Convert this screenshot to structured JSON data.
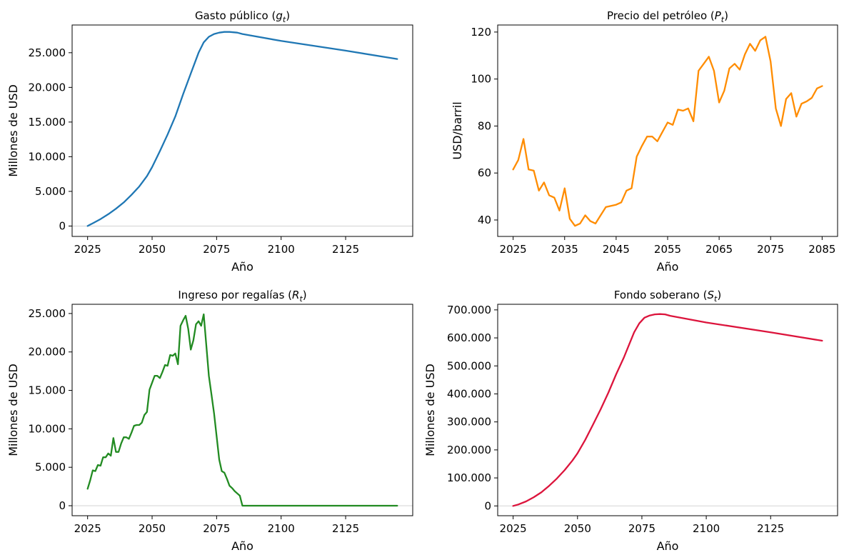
{
  "chart_data": [
    {
      "type": "line",
      "title": "Gasto público (",
      "title_var": "g",
      "title_sub": "t",
      "title_close": ")",
      "xlabel": "Año",
      "ylabel": "Millones de USD",
      "xlim": [
        2019,
        2151
      ],
      "ylim": [
        -1500,
        29000
      ],
      "xticks": [
        2025,
        2050,
        2075,
        2100,
        2125
      ],
      "xtick_labels": [
        "2025",
        "2050",
        "2075",
        "2100",
        "2125"
      ],
      "yticks": [
        0,
        5000,
        10000,
        15000,
        20000,
        25000
      ],
      "ytick_labels": [
        "0",
        "5.000",
        "10.000",
        "15.000",
        "20.000",
        "25.000"
      ],
      "zero_line": true,
      "grid": false,
      "color": "#1f77b4",
      "series": [
        {
          "x": [
            2025,
            2027,
            2030,
            2033,
            2036,
            2039,
            2042,
            2045,
            2048,
            2050,
            2053,
            2056,
            2059,
            2062,
            2065,
            2068,
            2070,
            2072,
            2074,
            2076,
            2078,
            2080,
            2083,
            2085,
            2100,
            2125,
            2145
          ],
          "values": [
            0,
            400,
            1000,
            1700,
            2500,
            3400,
            4500,
            5700,
            7200,
            8500,
            10800,
            13200,
            15800,
            19000,
            22000,
            25000,
            26500,
            27300,
            27700,
            27900,
            28000,
            28000,
            27900,
            27700,
            26700,
            25300,
            24100
          ]
        }
      ]
    },
    {
      "type": "line",
      "title": "Precio del petróleo (",
      "title_var": "P",
      "title_sub": "t",
      "title_close": ")",
      "xlabel": "Año",
      "ylabel": "USD/barril",
      "xlim": [
        2022,
        2088
      ],
      "ylim": [
        33,
        123
      ],
      "xticks": [
        2025,
        2035,
        2045,
        2055,
        2065,
        2075,
        2085
      ],
      "xtick_labels": [
        "2025",
        "2035",
        "2045",
        "2055",
        "2065",
        "2075",
        "2085"
      ],
      "yticks": [
        40,
        60,
        80,
        100,
        120
      ],
      "ytick_labels": [
        "40",
        "60",
        "80",
        "100",
        "120"
      ],
      "zero_line": false,
      "grid": false,
      "color": "#ff8c00",
      "series": [
        {
          "x": [
            2025,
            2026,
            2027,
            2028,
            2029,
            2030,
            2031,
            2032,
            2033,
            2034,
            2035,
            2036,
            2037,
            2038,
            2039,
            2040,
            2041,
            2042,
            2043,
            2044,
            2045,
            2046,
            2047,
            2048,
            2049,
            2050,
            2051,
            2052,
            2053,
            2054,
            2055,
            2056,
            2057,
            2058,
            2059,
            2060,
            2061,
            2062,
            2063,
            2064,
            2065,
            2066,
            2067,
            2068,
            2069,
            2070,
            2071,
            2072,
            2073,
            2074,
            2075,
            2076,
            2077,
            2078,
            2079,
            2080,
            2081,
            2082,
            2083,
            2084,
            2085
          ],
          "values": [
            61.5,
            65.5,
            74.5,
            61.5,
            61,
            52.5,
            56,
            50.5,
            49.5,
            44,
            53.5,
            40.5,
            37.5,
            38.5,
            42,
            39.5,
            38.5,
            42,
            45.5,
            46,
            46.5,
            47.5,
            52.5,
            53.5,
            67,
            71.5,
            75.5,
            75.5,
            73.5,
            77.5,
            81.5,
            80.5,
            87,
            86.5,
            87.5,
            82,
            103.5,
            106.5,
            109.5,
            103.5,
            90,
            95,
            104.5,
            106.5,
            104,
            110.5,
            115,
            112,
            116.5,
            118,
            107.5,
            87.5,
            80,
            91.5,
            94,
            84,
            89.5,
            90.5,
            92,
            96,
            97
          ]
        }
      ]
    },
    {
      "type": "line",
      "title": "Ingreso por regalías (",
      "title_var": "R",
      "title_sub": "t",
      "title_close": ")",
      "xlabel": "Año",
      "ylabel": "Millones de USD",
      "xlim": [
        2019,
        2151
      ],
      "ylim": [
        -1300,
        26200
      ],
      "xticks": [
        2025,
        2050,
        2075,
        2100,
        2125
      ],
      "xtick_labels": [
        "2025",
        "2050",
        "2075",
        "2100",
        "2125"
      ],
      "yticks": [
        0,
        5000,
        10000,
        15000,
        20000,
        25000
      ],
      "ytick_labels": [
        "0",
        "5.000",
        "10.000",
        "15.000",
        "20.000",
        "25.000"
      ],
      "zero_line": true,
      "grid": false,
      "color": "#228b22",
      "series": [
        {
          "x": [
            2025,
            2026,
            2027,
            2028,
            2029,
            2030,
            2031,
            2032,
            2033,
            2034,
            2035,
            2036,
            2037,
            2038,
            2039,
            2040,
            2041,
            2042,
            2043,
            2044,
            2045,
            2046,
            2047,
            2048,
            2049,
            2050,
            2051,
            2052,
            2053,
            2054,
            2055,
            2056,
            2057,
            2058,
            2059,
            2060,
            2061,
            2062,
            2063,
            2064,
            2065,
            2066,
            2067,
            2068,
            2069,
            2070,
            2071,
            2072,
            2073,
            2074,
            2075,
            2076,
            2077,
            2078,
            2079,
            2080,
            2081,
            2082,
            2083,
            2084,
            2085,
            2090,
            2100,
            2125,
            2145
          ],
          "values": [
            2200,
            3300,
            4600,
            4500,
            5300,
            5200,
            6300,
            6300,
            6800,
            6500,
            8800,
            7000,
            7000,
            8100,
            8900,
            8900,
            8700,
            9500,
            10400,
            10500,
            10500,
            10800,
            11800,
            12200,
            15100,
            16000,
            16900,
            16900,
            16600,
            17400,
            18300,
            18200,
            19600,
            19500,
            19800,
            18400,
            23400,
            24100,
            24700,
            23000,
            20300,
            21500,
            23600,
            24000,
            23400,
            24900,
            20900,
            16900,
            14500,
            12000,
            9000,
            6000,
            4500,
            4300,
            3500,
            2600,
            2300,
            1900,
            1600,
            1300,
            0,
            0,
            0,
            0,
            0
          ]
        }
      ]
    },
    {
      "type": "line",
      "title": "Fondo soberano (",
      "title_var": "S",
      "title_sub": "t",
      "title_close": ")",
      "xlabel": "Año",
      "ylabel": "Millones de USD",
      "xlim": [
        2019,
        2151
      ],
      "ylim": [
        -35000,
        720000
      ],
      "xticks": [
        2025,
        2050,
        2075,
        2100,
        2125
      ],
      "xtick_labels": [
        "2025",
        "2050",
        "2075",
        "2100",
        "2125"
      ],
      "yticks": [
        0,
        100000,
        200000,
        300000,
        400000,
        500000,
        600000,
        700000
      ],
      "ytick_labels": [
        "0",
        "100.000",
        "200.000",
        "300.000",
        "400.000",
        "500.000",
        "600.000",
        "700.000"
      ],
      "zero_line": true,
      "grid": false,
      "color": "#dc143c",
      "series": [
        {
          "x": [
            2025,
            2027,
            2030,
            2033,
            2036,
            2039,
            2042,
            2045,
            2048,
            2050,
            2053,
            2056,
            2059,
            2062,
            2065,
            2068,
            2070,
            2072,
            2074,
            2076,
            2078,
            2080,
            2082,
            2084,
            2086,
            2100,
            2125,
            2145
          ],
          "values": [
            0,
            5000,
            16000,
            31000,
            49000,
            72000,
            98000,
            128000,
            162000,
            188000,
            236000,
            290000,
            345000,
            405000,
            470000,
            530000,
            575000,
            620000,
            652000,
            672000,
            680000,
            684000,
            685000,
            684000,
            679000,
            655000,
            620000,
            590000
          ]
        }
      ]
    }
  ]
}
